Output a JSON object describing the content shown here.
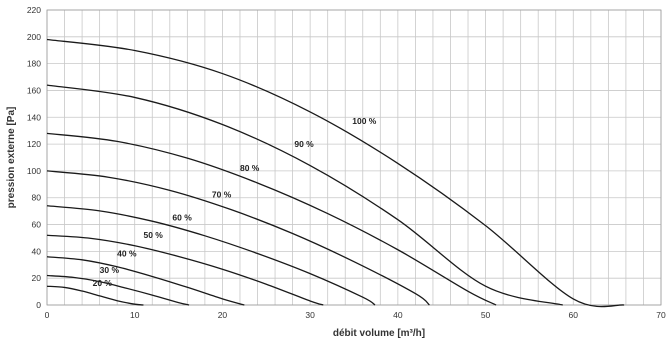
{
  "chart_data": {
    "type": "line",
    "title": "",
    "xlabel": "débit volume  [m³/h]",
    "ylabel": "pression externe [Pa]",
    "xlim": [
      0,
      70
    ],
    "ylim": [
      0,
      220
    ],
    "xticks": [
      0,
      10,
      20,
      30,
      40,
      50,
      60,
      70
    ],
    "yticks": [
      0,
      20,
      40,
      60,
      80,
      100,
      120,
      140,
      160,
      180,
      200,
      220
    ],
    "grid": true,
    "legend": "none",
    "series": [
      {
        "name": "20 %",
        "label_at": [
          5.2,
          14
        ],
        "x": [
          0,
          2,
          4,
          6,
          8,
          10,
          11
        ],
        "y": [
          14,
          13.1,
          10.4,
          6.8,
          3.2,
          0.6,
          0
        ]
      },
      {
        "name": "30 %",
        "label_at": [
          6,
          24
        ],
        "x": [
          0,
          3,
          6,
          9,
          12,
          15,
          16.2
        ],
        "y": [
          22,
          20.6,
          17.4,
          12.6,
          7.4,
          1.8,
          0
        ]
      },
      {
        "name": "40 %",
        "label_at": [
          8,
          36
        ],
        "x": [
          0,
          4,
          8,
          12,
          16,
          20,
          22.5
        ],
        "y": [
          36,
          33.7,
          28.5,
          21.3,
          13.2,
          4.6,
          0
        ]
      },
      {
        "name": "50 %",
        "label_at": [
          11,
          50
        ],
        "x": [
          0,
          5,
          10,
          15,
          20,
          25,
          30,
          31.5
        ],
        "y": [
          52,
          49.7,
          44.2,
          36.2,
          26.7,
          15.5,
          3,
          0
        ]
      },
      {
        "name": "60 %",
        "label_at": [
          14.3,
          63
        ],
        "x": [
          0,
          6,
          12,
          18,
          24,
          30,
          36,
          37.4
        ],
        "y": [
          74,
          70.2,
          62.5,
          51.6,
          38.4,
          23.4,
          5.8,
          0
        ]
      },
      {
        "name": "70 %",
        "label_at": [
          18.8,
          80
        ],
        "x": [
          0,
          7,
          14,
          21,
          28,
          35,
          42,
          43.6
        ],
        "y": [
          100,
          95.3,
          85.5,
          71.1,
          53.3,
          32.3,
          8.5,
          0
        ]
      },
      {
        "name": "80 %",
        "label_at": [
          22,
          100
        ],
        "x": [
          0,
          8,
          16,
          24,
          32,
          40,
          48,
          51.2
        ],
        "y": [
          128,
          122,
          109.5,
          91,
          68.2,
          41.2,
          10.2,
          0
        ]
      },
      {
        "name": "90 %",
        "label_at": [
          28.2,
          118
        ],
        "x": [
          0,
          10,
          20,
          30,
          40,
          50,
          58.8
        ],
        "y": [
          164,
          154.8,
          134.6,
          104,
          63.6,
          14,
          0
        ]
      },
      {
        "name": "100 %",
        "label_at": [
          34.8,
          135
        ],
        "x": [
          0,
          10,
          20,
          30,
          40,
          50,
          60,
          65.8
        ],
        "y": [
          198,
          189.8,
          172.6,
          144,
          105.6,
          59.2,
          4.5,
          0
        ]
      }
    ]
  }
}
